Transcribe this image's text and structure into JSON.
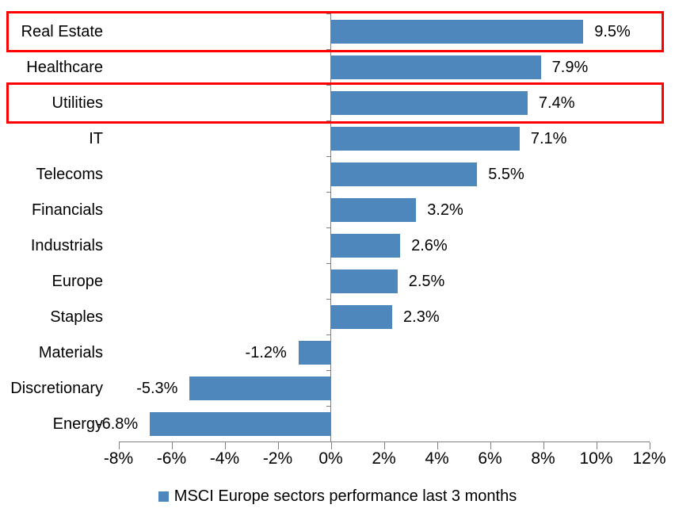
{
  "chart_data": {
    "type": "bar",
    "orientation": "horizontal",
    "categories": [
      "Real Estate",
      "Healthcare",
      "Utilities",
      "IT",
      "Telecoms",
      "Financials",
      "Industrials",
      "Europe",
      "Staples",
      "Materials",
      "Discretionary",
      "Energy"
    ],
    "values": [
      9.5,
      7.9,
      7.4,
      7.1,
      5.5,
      3.2,
      2.6,
      2.5,
      2.3,
      -1.2,
      -5.3,
      -6.8
    ],
    "value_labels": [
      "9.5%",
      "7.9%",
      "7.4%",
      "7.1%",
      "5.5%",
      "3.2%",
      "2.6%",
      "2.5%",
      "2.3%",
      "-1.2%",
      "-5.3%",
      "-6.8%"
    ],
    "x_tick_labels": [
      "-8%",
      "-6%",
      "-4%",
      "-2%",
      "0%",
      "2%",
      "4%",
      "6%",
      "8%",
      "10%",
      "12%"
    ],
    "x_tick_values": [
      -8,
      -6,
      -4,
      -2,
      0,
      2,
      4,
      6,
      8,
      10,
      12
    ],
    "xlim": [
      -8,
      12
    ],
    "grid": false,
    "legend": "MSCI Europe sectors performance last 3 months",
    "legend_position": "bottom",
    "highlighted_categories": [
      "Real Estate",
      "Utilities"
    ],
    "colors": {
      "bar": "#4E87BB",
      "highlight_box": "#FF0000",
      "axis": "#808080",
      "text": "#000000",
      "background": "#FFFFFF"
    }
  }
}
